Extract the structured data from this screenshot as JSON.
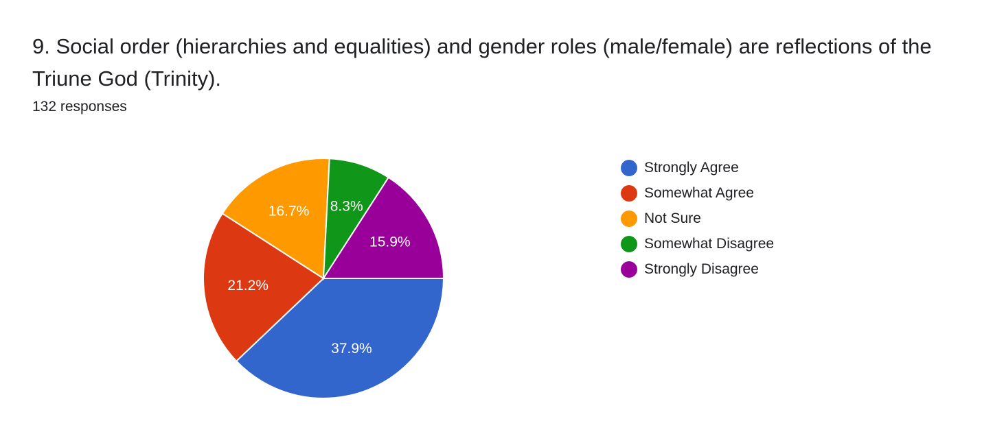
{
  "question": {
    "title": "9. Social order (hierarchies and equalities) and gender roles (male/female) are reflections of the Triune God (Trinity).",
    "response_count": "132 responses"
  },
  "chart_data": {
    "type": "pie",
    "title": "9. Social order (hierarchies and equalities) and gender roles (male/female) are reflections of the Triune God (Trinity).",
    "categories": [
      "Strongly Agree",
      "Somewhat Agree",
      "Not Sure",
      "Somewhat Disagree",
      "Strongly Disagree"
    ],
    "values": [
      37.9,
      21.2,
      16.7,
      8.3,
      15.9
    ],
    "labels": [
      "37.9%",
      "21.2%",
      "16.7%",
      "8.3%",
      "15.9%"
    ],
    "colors": [
      "#3366cc",
      "#dc3912",
      "#ff9900",
      "#109618",
      "#990099"
    ],
    "legend_position": "right",
    "start": "3 o'clock, clockwise"
  }
}
